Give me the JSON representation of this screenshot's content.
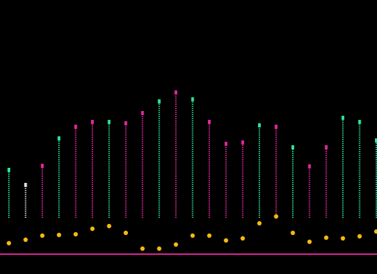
{
  "chart_data": {
    "type": "range",
    "categories": [
      null,
      null,
      null,
      null,
      null,
      null,
      null,
      null,
      null,
      null,
      null,
      null,
      null,
      null,
      null,
      null,
      null,
      null,
      null,
      null,
      null,
      null,
      null
    ],
    "high": [
      152,
      130,
      158,
      198,
      215,
      222,
      222,
      220,
      235,
      252,
      265,
      255,
      222,
      190,
      192,
      217,
      215,
      185,
      157,
      185,
      228,
      222,
      195
    ],
    "low": [
      82,
      82,
      82,
      82,
      82,
      82,
      82,
      82,
      82,
      82,
      82,
      82,
      82,
      82,
      82,
      82,
      82,
      82,
      82,
      82,
      82,
      82,
      82
    ],
    "points": [
      45,
      50,
      56,
      57,
      58,
      66,
      70,
      60,
      37,
      37,
      43,
      56,
      56,
      49,
      52,
      74,
      84,
      60,
      47,
      53,
      52,
      55,
      62
    ],
    "colors": [
      "#2be596",
      "#e0e0e0",
      "#e3269e",
      "#2be596",
      "#e3269e",
      "#e3269e",
      "#2be596",
      "#e3269e",
      "#e3269e",
      "#2be596",
      "#e3269e",
      "#2be596",
      "#e3269e",
      "#e3269e",
      "#e3269e",
      "#2be596",
      "#e3269e",
      "#2be596",
      "#e3269e",
      "#e3269e",
      "#2be596",
      "#2be596",
      "#2be596"
    ],
    "point_color": "#f5b90f",
    "ylim": [
      0,
      400
    ]
  }
}
